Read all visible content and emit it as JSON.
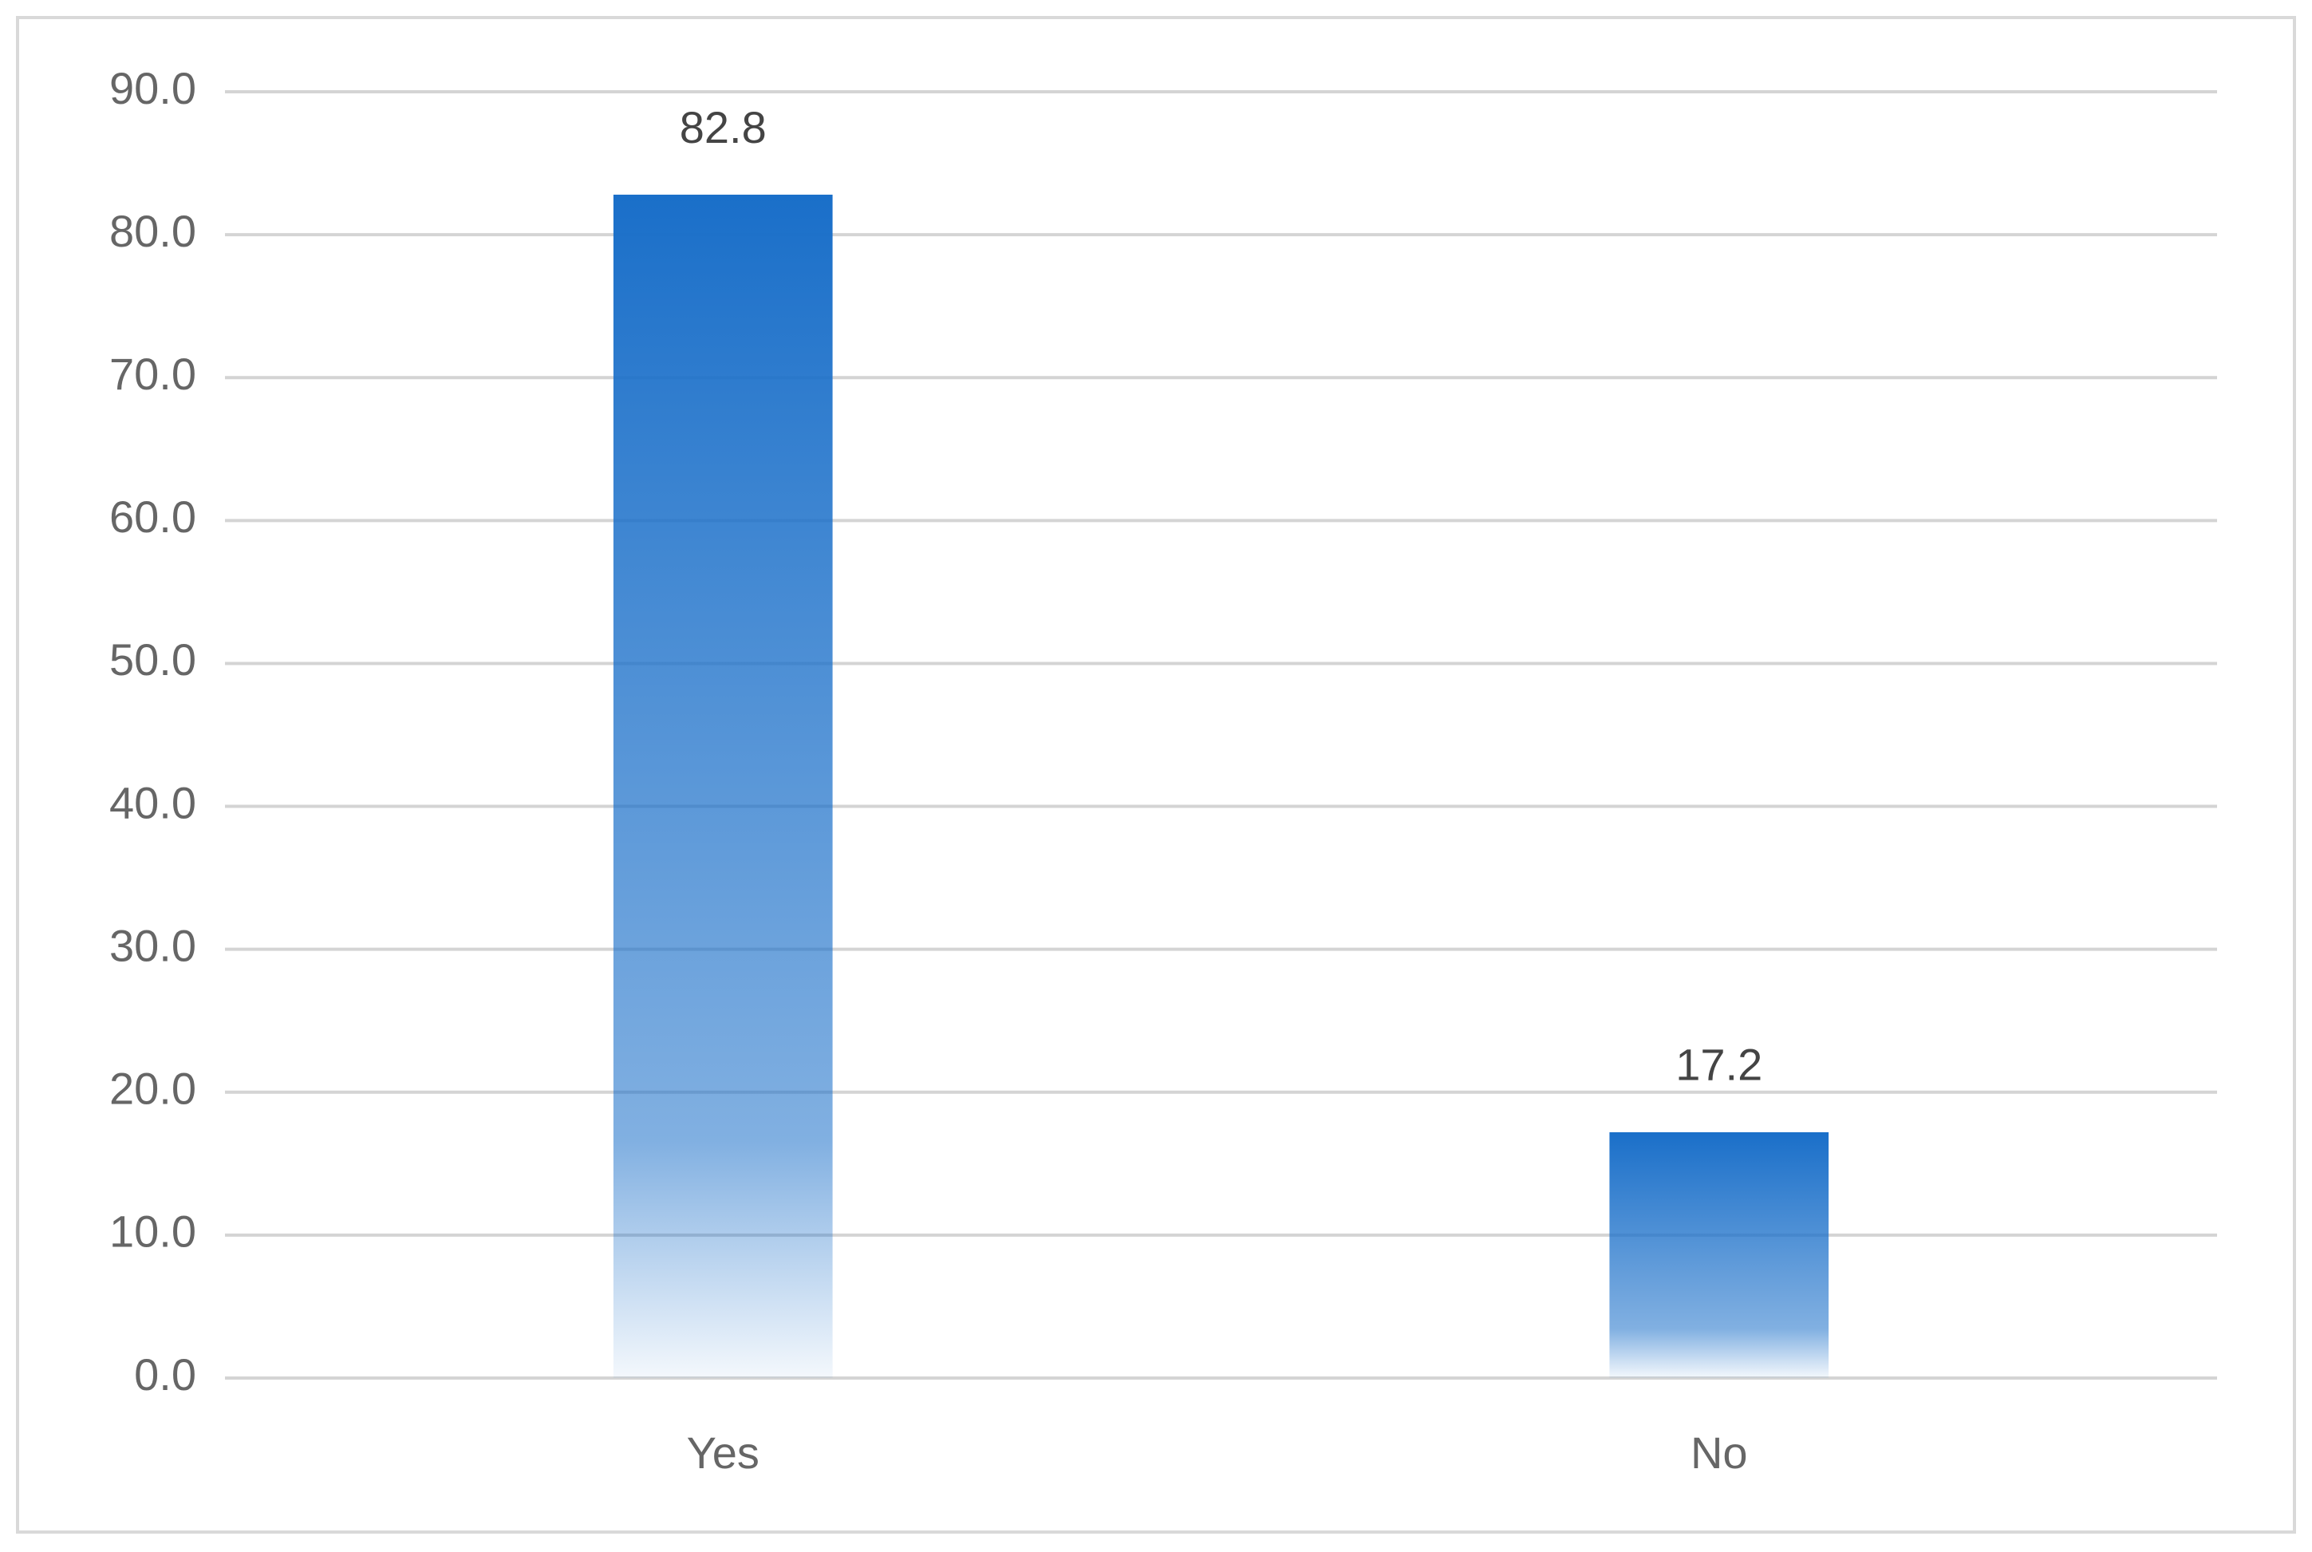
{
  "chart_data": {
    "type": "bar",
    "categories": [
      "Yes",
      "No"
    ],
    "values": [
      82.8,
      17.2
    ],
    "color": "#1a6fc9",
    "ylim": [
      0,
      90
    ],
    "yticks": [
      {
        "value": 0,
        "label": "0.0"
      },
      {
        "value": 10,
        "label": "10.0"
      },
      {
        "value": 20,
        "label": "20.0"
      },
      {
        "value": 30,
        "label": "30.0"
      },
      {
        "value": 40,
        "label": "40.0"
      },
      {
        "value": 50,
        "label": "50.0"
      },
      {
        "value": 60,
        "label": "60.0"
      },
      {
        "value": 70,
        "label": "70.0"
      },
      {
        "value": 80,
        "label": "80.0"
      },
      {
        "value": 90,
        "label": "90.0"
      }
    ],
    "grid": true
  }
}
